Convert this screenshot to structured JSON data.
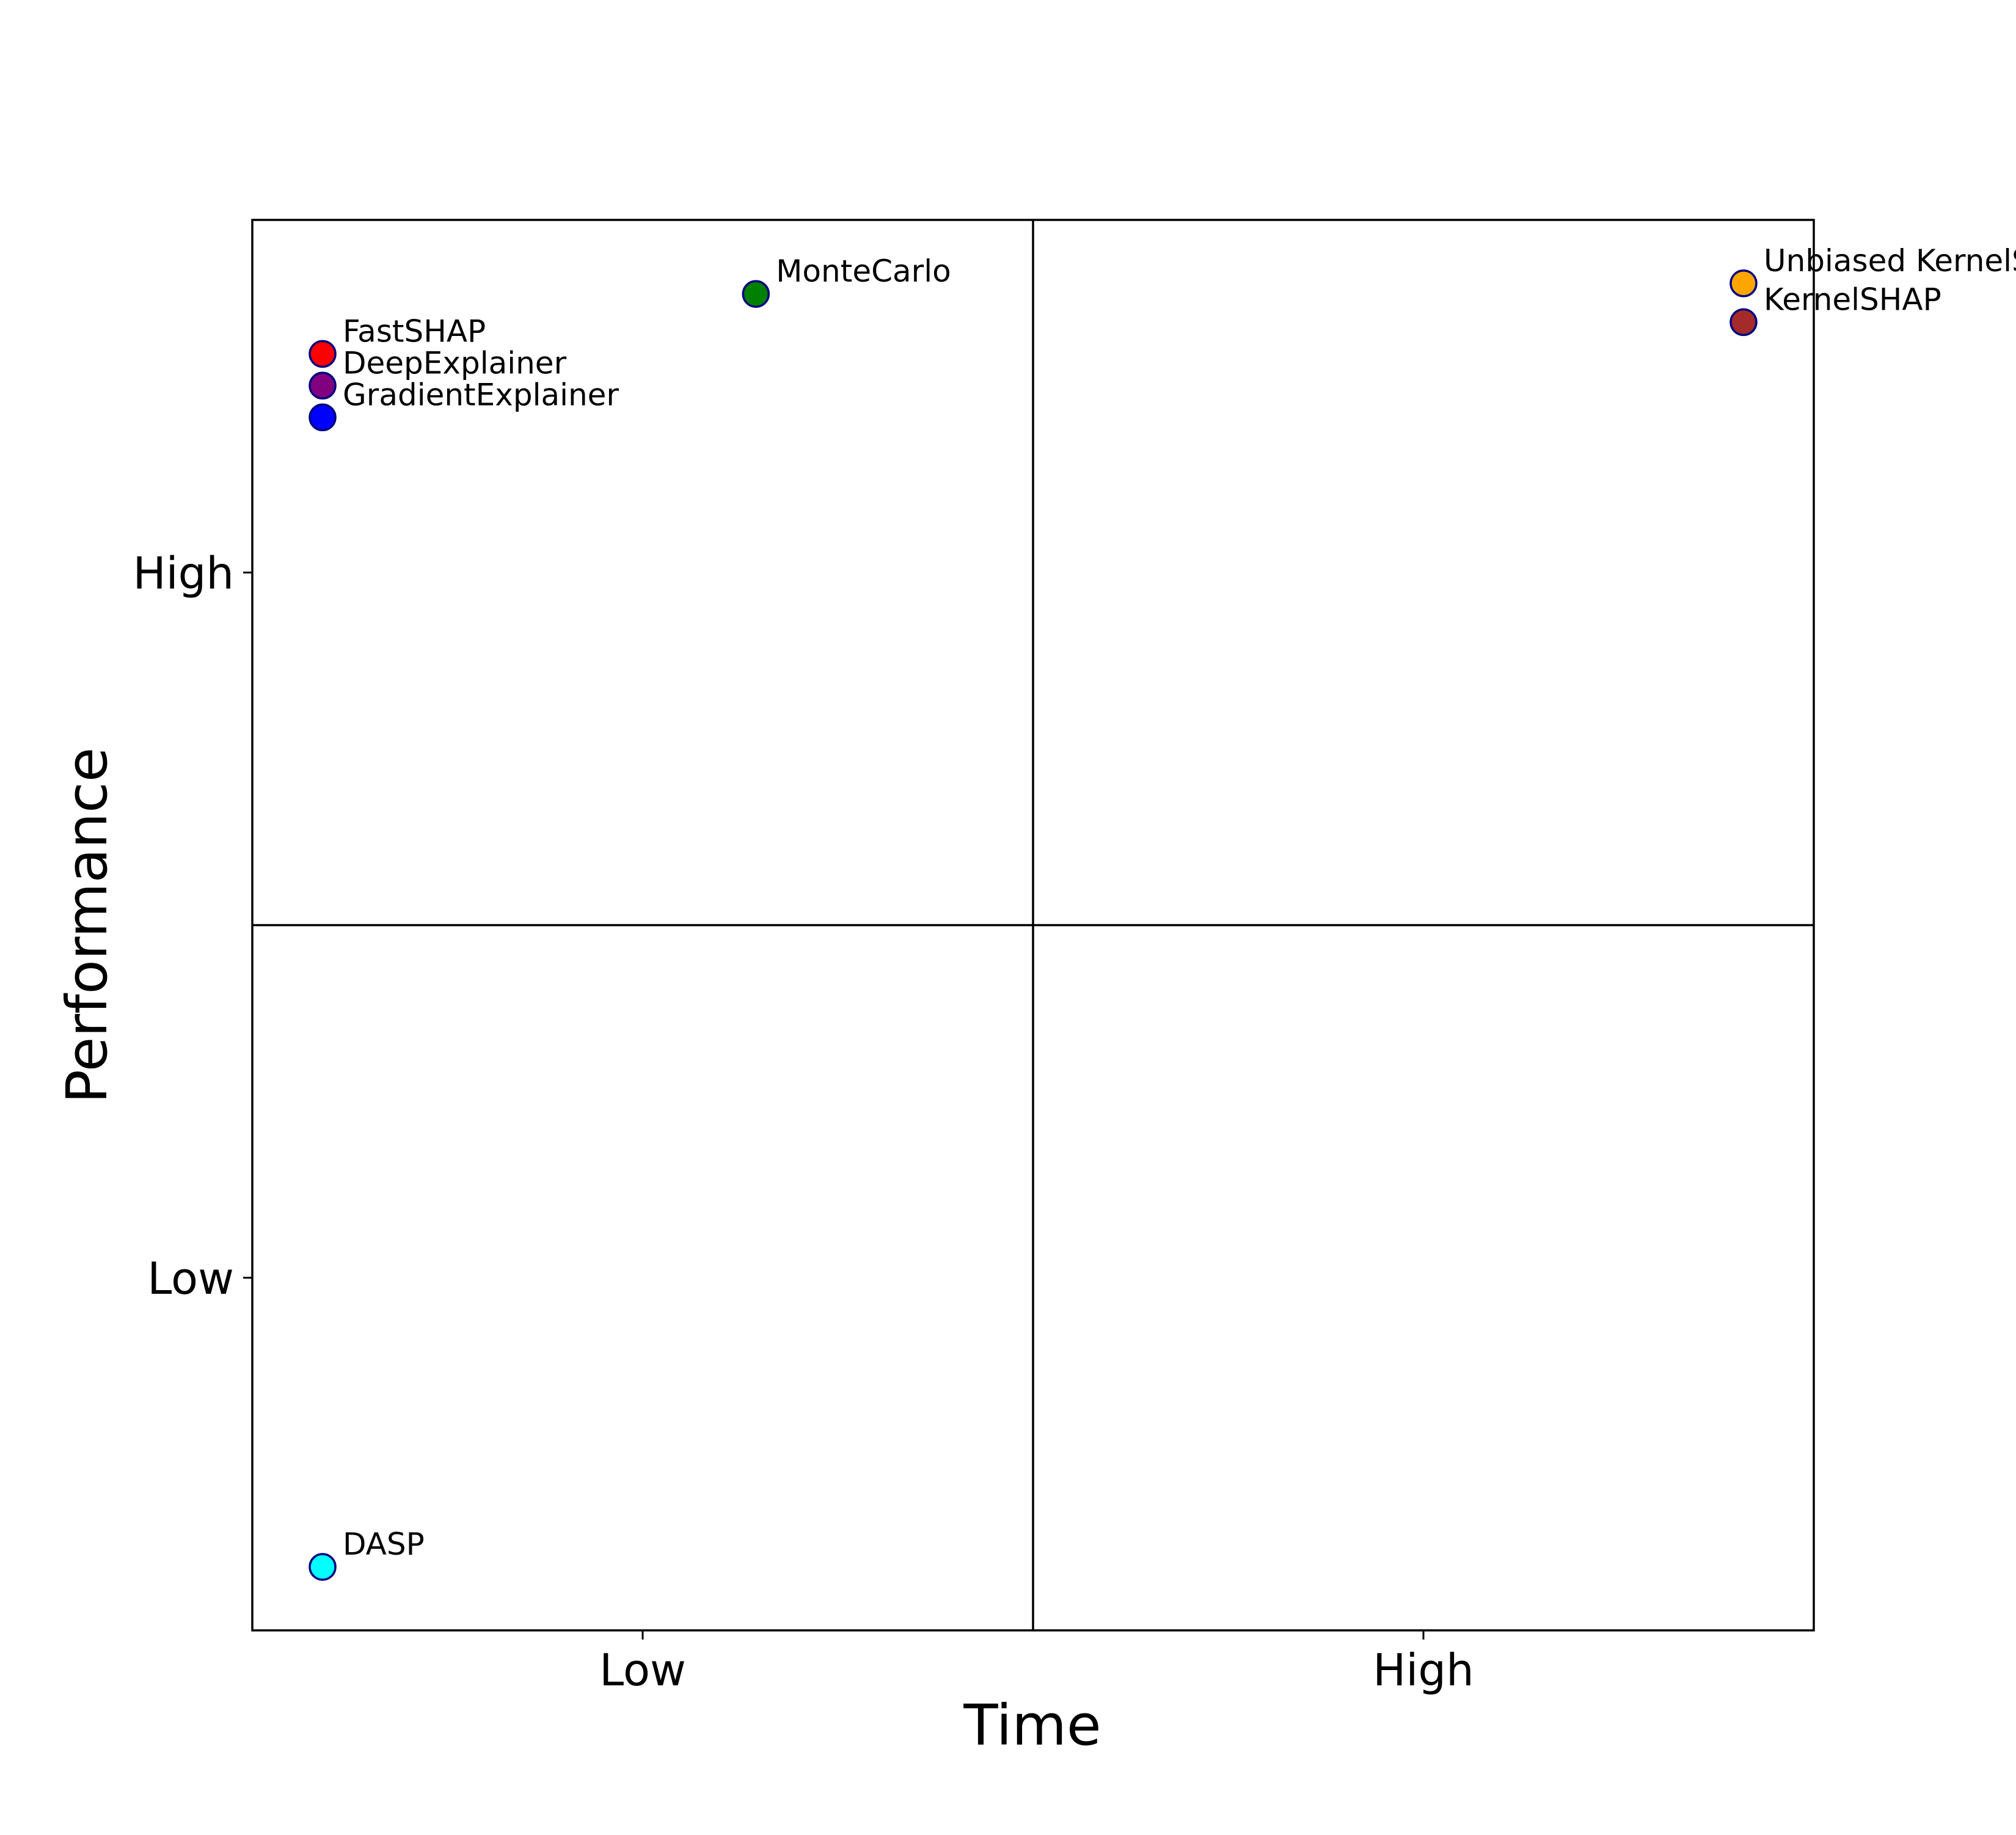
{
  "chart_data": {
    "type": "scatter",
    "title": "",
    "xlabel": "Time",
    "ylabel": "Performance",
    "xlim": [
      0,
      4
    ],
    "ylim": [
      0,
      4
    ],
    "x_ticks": [
      {
        "value": 1,
        "label": "Low"
      },
      {
        "value": 3,
        "label": "High"
      }
    ],
    "y_ticks": [
      {
        "value": 1,
        "label": "Low"
      },
      {
        "value": 3,
        "label": "High"
      }
    ],
    "quadrant_dividers": {
      "x": 2,
      "y": 2
    },
    "grid": false,
    "legend": "none",
    "marker_edge_color": "#000080",
    "points": [
      {
        "label": "FastSHAP",
        "x": 0.18,
        "y": 3.62,
        "color": "#ff0000"
      },
      {
        "label": "DeepExplainer",
        "x": 0.18,
        "y": 3.53,
        "color": "#800080"
      },
      {
        "label": "GradientExplainer",
        "x": 0.18,
        "y": 3.44,
        "color": "#0000ff"
      },
      {
        "label": "MonteCarlo",
        "x": 1.29,
        "y": 3.79,
        "color": "#008000"
      },
      {
        "label": "Unbiased KernelSHAP",
        "x": 3.82,
        "y": 3.82,
        "color": "#ffa500"
      },
      {
        "label": "KernelSHAP",
        "x": 3.82,
        "y": 3.71,
        "color": "#a52a2a"
      },
      {
        "label": "DASP",
        "x": 0.18,
        "y": 0.18,
        "color": "#00ffff"
      }
    ]
  }
}
